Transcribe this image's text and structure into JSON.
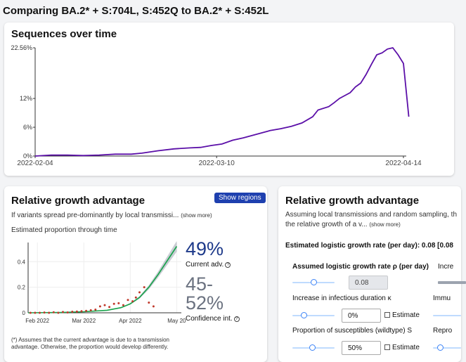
{
  "page": {
    "title": "Comparing BA.2* + S:704L, S:452Q to BA.2* + S:452L"
  },
  "sequences": {
    "title": "Sequences over time",
    "chart_data": {
      "type": "line",
      "title": "Sequences over time",
      "y_ticks": [
        "22.56%",
        "12%",
        "6%",
        "0%"
      ],
      "y_tick_values": [
        22.56,
        12,
        6,
        0
      ],
      "x_ticks": [
        "2022-02-04",
        "2022-03-10",
        "2022-04-14"
      ],
      "x_tick_days": [
        0,
        34,
        69
      ],
      "ylim": [
        0,
        22.56
      ],
      "xlim_days": [
        0,
        69
      ],
      "color": "#5b0fa8",
      "series": [
        {
          "x": [
            0,
            3,
            6,
            9,
            12,
            15,
            18,
            20,
            23,
            26,
            29,
            31,
            33,
            35,
            37,
            39,
            41,
            43,
            44,
            46,
            48,
            50,
            52,
            53,
            55,
            56,
            57,
            58,
            59,
            60,
            61,
            62,
            63,
            64,
            65,
            66,
            67,
            68,
            69,
            70
          ],
          "y": [
            0,
            0.2,
            0.2,
            0.1,
            0.2,
            0.4,
            0.4,
            0.6,
            1.1,
            1.5,
            1.7,
            1.8,
            2.2,
            2.5,
            3.3,
            3.8,
            4.4,
            5.0,
            5.3,
            5.7,
            6.2,
            6.9,
            8.2,
            9.6,
            10.3,
            11.1,
            12.0,
            12.6,
            13.2,
            14.4,
            15.2,
            17.0,
            19.1,
            21.1,
            21.5,
            22.3,
            22.56,
            21.1,
            19.3,
            8.2
          ]
        }
      ]
    }
  },
  "left": {
    "title": "Relative growth advantage",
    "button": "Show regions",
    "desc": "If variants spread pre-dominantly by local transmissi...",
    "show_more": "(show more)",
    "subtitle": "Estimated proportion through time",
    "chart_data": {
      "type": "scatter",
      "y_ticks": [
        "0.4",
        "0.2",
        "0"
      ],
      "y_tick_values": [
        0.4,
        0.2,
        0
      ],
      "x_ticks": [
        "Feb 2022",
        "Mar 2022",
        "Apr 2022",
        "May 20"
      ],
      "x_tick_months": [
        0,
        1,
        2,
        3
      ],
      "ylim": [
        0,
        0.55
      ],
      "xlim_months": [
        -0.2,
        3.1
      ],
      "fit_color": "#16a34a",
      "ci_color": "#9ca3af",
      "point_color": "#c0392b",
      "fit": {
        "x": [
          -0.2,
          0.5,
          1.0,
          1.5,
          1.8,
          2.0,
          2.2,
          2.4,
          2.6,
          2.8,
          3.0
        ],
        "y": [
          0.0,
          0.003,
          0.008,
          0.02,
          0.04,
          0.07,
          0.12,
          0.2,
          0.3,
          0.41,
          0.52
        ]
      },
      "points": {
        "x": [
          -0.15,
          -0.05,
          0.05,
          0.15,
          0.25,
          0.35,
          0.45,
          0.55,
          0.65,
          0.75,
          0.85,
          0.95,
          1.05,
          1.15,
          1.25,
          1.35,
          1.45,
          1.55,
          1.65,
          1.75,
          1.85,
          1.95,
          2.05,
          2.12,
          2.2,
          2.3,
          2.4,
          2.5
        ],
        "y": [
          0.0,
          0.0,
          0.0,
          0.002,
          0.0,
          0.004,
          0.0,
          0.006,
          0.003,
          0.008,
          0.01,
          0.012,
          0.015,
          0.02,
          0.025,
          0.05,
          0.06,
          0.045,
          0.07,
          0.075,
          0.06,
          0.1,
          0.09,
          0.12,
          0.16,
          0.2,
          0.08,
          0.05
        ]
      }
    },
    "advantage": "49%",
    "advantage_label": "Current adv.",
    "ci_line1": "45-",
    "ci_line2": "52%",
    "ci_label": "Confidence int.",
    "footnote_1": "(*) Assumes that the current advantage is due to a transmission",
    "footnote_2": "advantage. Otherwise, the proportion would develop differently."
  },
  "right": {
    "title": "Relative growth advantage",
    "desc_1": "Assuming local transmissions and random sampling, th",
    "desc_2": "the relative growth of a v...",
    "show_more": "(show more)",
    "estimate_line": "Estimated logistic growth rate (per day): 0.08 [0.08",
    "params": {
      "rho_label": "Assumed logistic growth rate ρ (per day)",
      "rho_value": "0.08",
      "rho_fraction": 0.5,
      "col2_label_1": "Incre",
      "kappa_label": "Increase in infectious duration κ",
      "kappa_value": "0%",
      "kappa_fraction": 0.25,
      "col2_label_2": "Immu",
      "s_label": "Proportion of susceptibles (wildtype) S",
      "s_value": "50%",
      "s_fraction": 0.45,
      "col2_label_3": "Repro",
      "estimate": "Estimate"
    }
  }
}
